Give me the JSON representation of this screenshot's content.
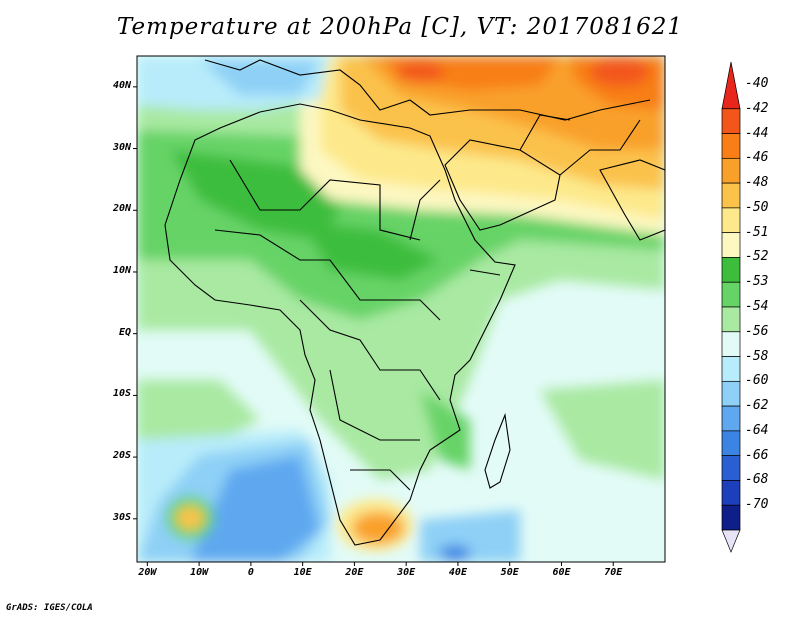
{
  "title": "Temperature at 200hPa [C], VT: 2017081621",
  "credit": "GrADS: IGES/COLA",
  "map": {
    "lon_range": [
      -22,
      80
    ],
    "lat_range": [
      -37,
      45
    ],
    "y_ticks": [
      {
        "lat": 40,
        "label": "40N"
      },
      {
        "lat": 30,
        "label": "30N"
      },
      {
        "lat": 20,
        "label": "20N"
      },
      {
        "lat": 10,
        "label": "10N"
      },
      {
        "lat": 0,
        "label": "EQ"
      },
      {
        "lat": -10,
        "label": "10S"
      },
      {
        "lat": -20,
        "label": "20S"
      },
      {
        "lat": -30,
        "label": "30S"
      }
    ],
    "x_ticks": [
      {
        "lon": -20,
        "label": "20W"
      },
      {
        "lon": -10,
        "label": "10W"
      },
      {
        "lon": 0,
        "label": "0"
      },
      {
        "lon": 10,
        "label": "10E"
      },
      {
        "lon": 20,
        "label": "20E"
      },
      {
        "lon": 30,
        "label": "30E"
      },
      {
        "lon": 40,
        "label": "40E"
      },
      {
        "lon": 50,
        "label": "50E"
      },
      {
        "lon": 60,
        "label": "60E"
      },
      {
        "lon": 70,
        "label": "70E"
      }
    ]
  },
  "colorbar": {
    "labels": [
      "-40",
      "-42",
      "-44",
      "-46",
      "-48",
      "-50",
      "-51",
      "-52",
      "-53",
      "-54",
      "-56",
      "-58",
      "-60",
      "-62",
      "-64",
      "-66",
      "-68",
      "-70"
    ],
    "colors": [
      "#e8261b",
      "#f3561a",
      "#f87e15",
      "#f9a02b",
      "#fbc24c",
      "#fde98b",
      "#fdf8c2",
      "#3cbd3c",
      "#66d366",
      "#a9e9a2",
      "#e2fbf7",
      "#b8ecfa",
      "#8ed0f6",
      "#5fa8f0",
      "#3c84e3",
      "#2a5fd3",
      "#1e3fbc",
      "#0f1f8a"
    ]
  }
}
